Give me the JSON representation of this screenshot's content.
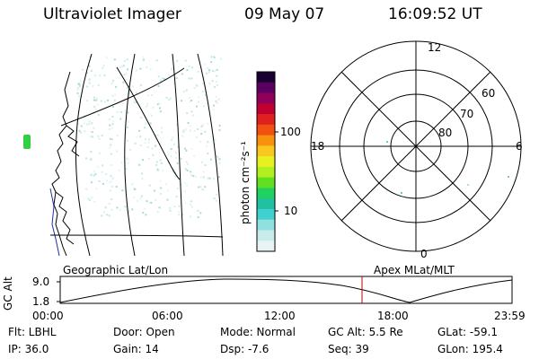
{
  "header": {
    "instrument": "Ultraviolet Imager",
    "date": "09 May 07",
    "time": "16:09:52 UT"
  },
  "colorbar": {
    "label": "photon cm⁻²s⁻¹",
    "ticks": [
      "100",
      "10"
    ],
    "colors": [
      "#1a0030",
      "#5a0060",
      "#90005a",
      "#c00030",
      "#e02020",
      "#f05010",
      "#f89010",
      "#f8c820",
      "#e8f020",
      "#b0f020",
      "#60e020",
      "#20d060",
      "#20c0a0",
      "#40d0d0",
      "#90e0e0",
      "#c8ecec",
      "#e8f4f4"
    ]
  },
  "map": {
    "lat_labels": [
      "60",
      "70",
      "80"
    ],
    "mlt_labels": [
      "12",
      "18",
      "6",
      "0"
    ]
  },
  "orbit": {
    "ylabel": "GC Alt",
    "yticks": [
      "9.0",
      "1.8"
    ],
    "left_title": "Geographic Lat/Lon",
    "right_title": "Apex MLat/MLT",
    "xticks": [
      "00:00",
      "06:00",
      "12:00",
      "18:00",
      "23:59"
    ],
    "marker_color": "#c00000"
  },
  "info": {
    "flt": "Flt: LBHL",
    "ip": "IP: 36.0",
    "door": "Door: Open",
    "gain": "Gain: 14",
    "mode": "Mode: Normal",
    "dsp": "Dsp:    -7.6",
    "gcalt": "GC Alt: 5.5 Re",
    "seq": "Seq: 39",
    "glat": "GLat: -59.1",
    "glon": "GLon: 195.4"
  }
}
